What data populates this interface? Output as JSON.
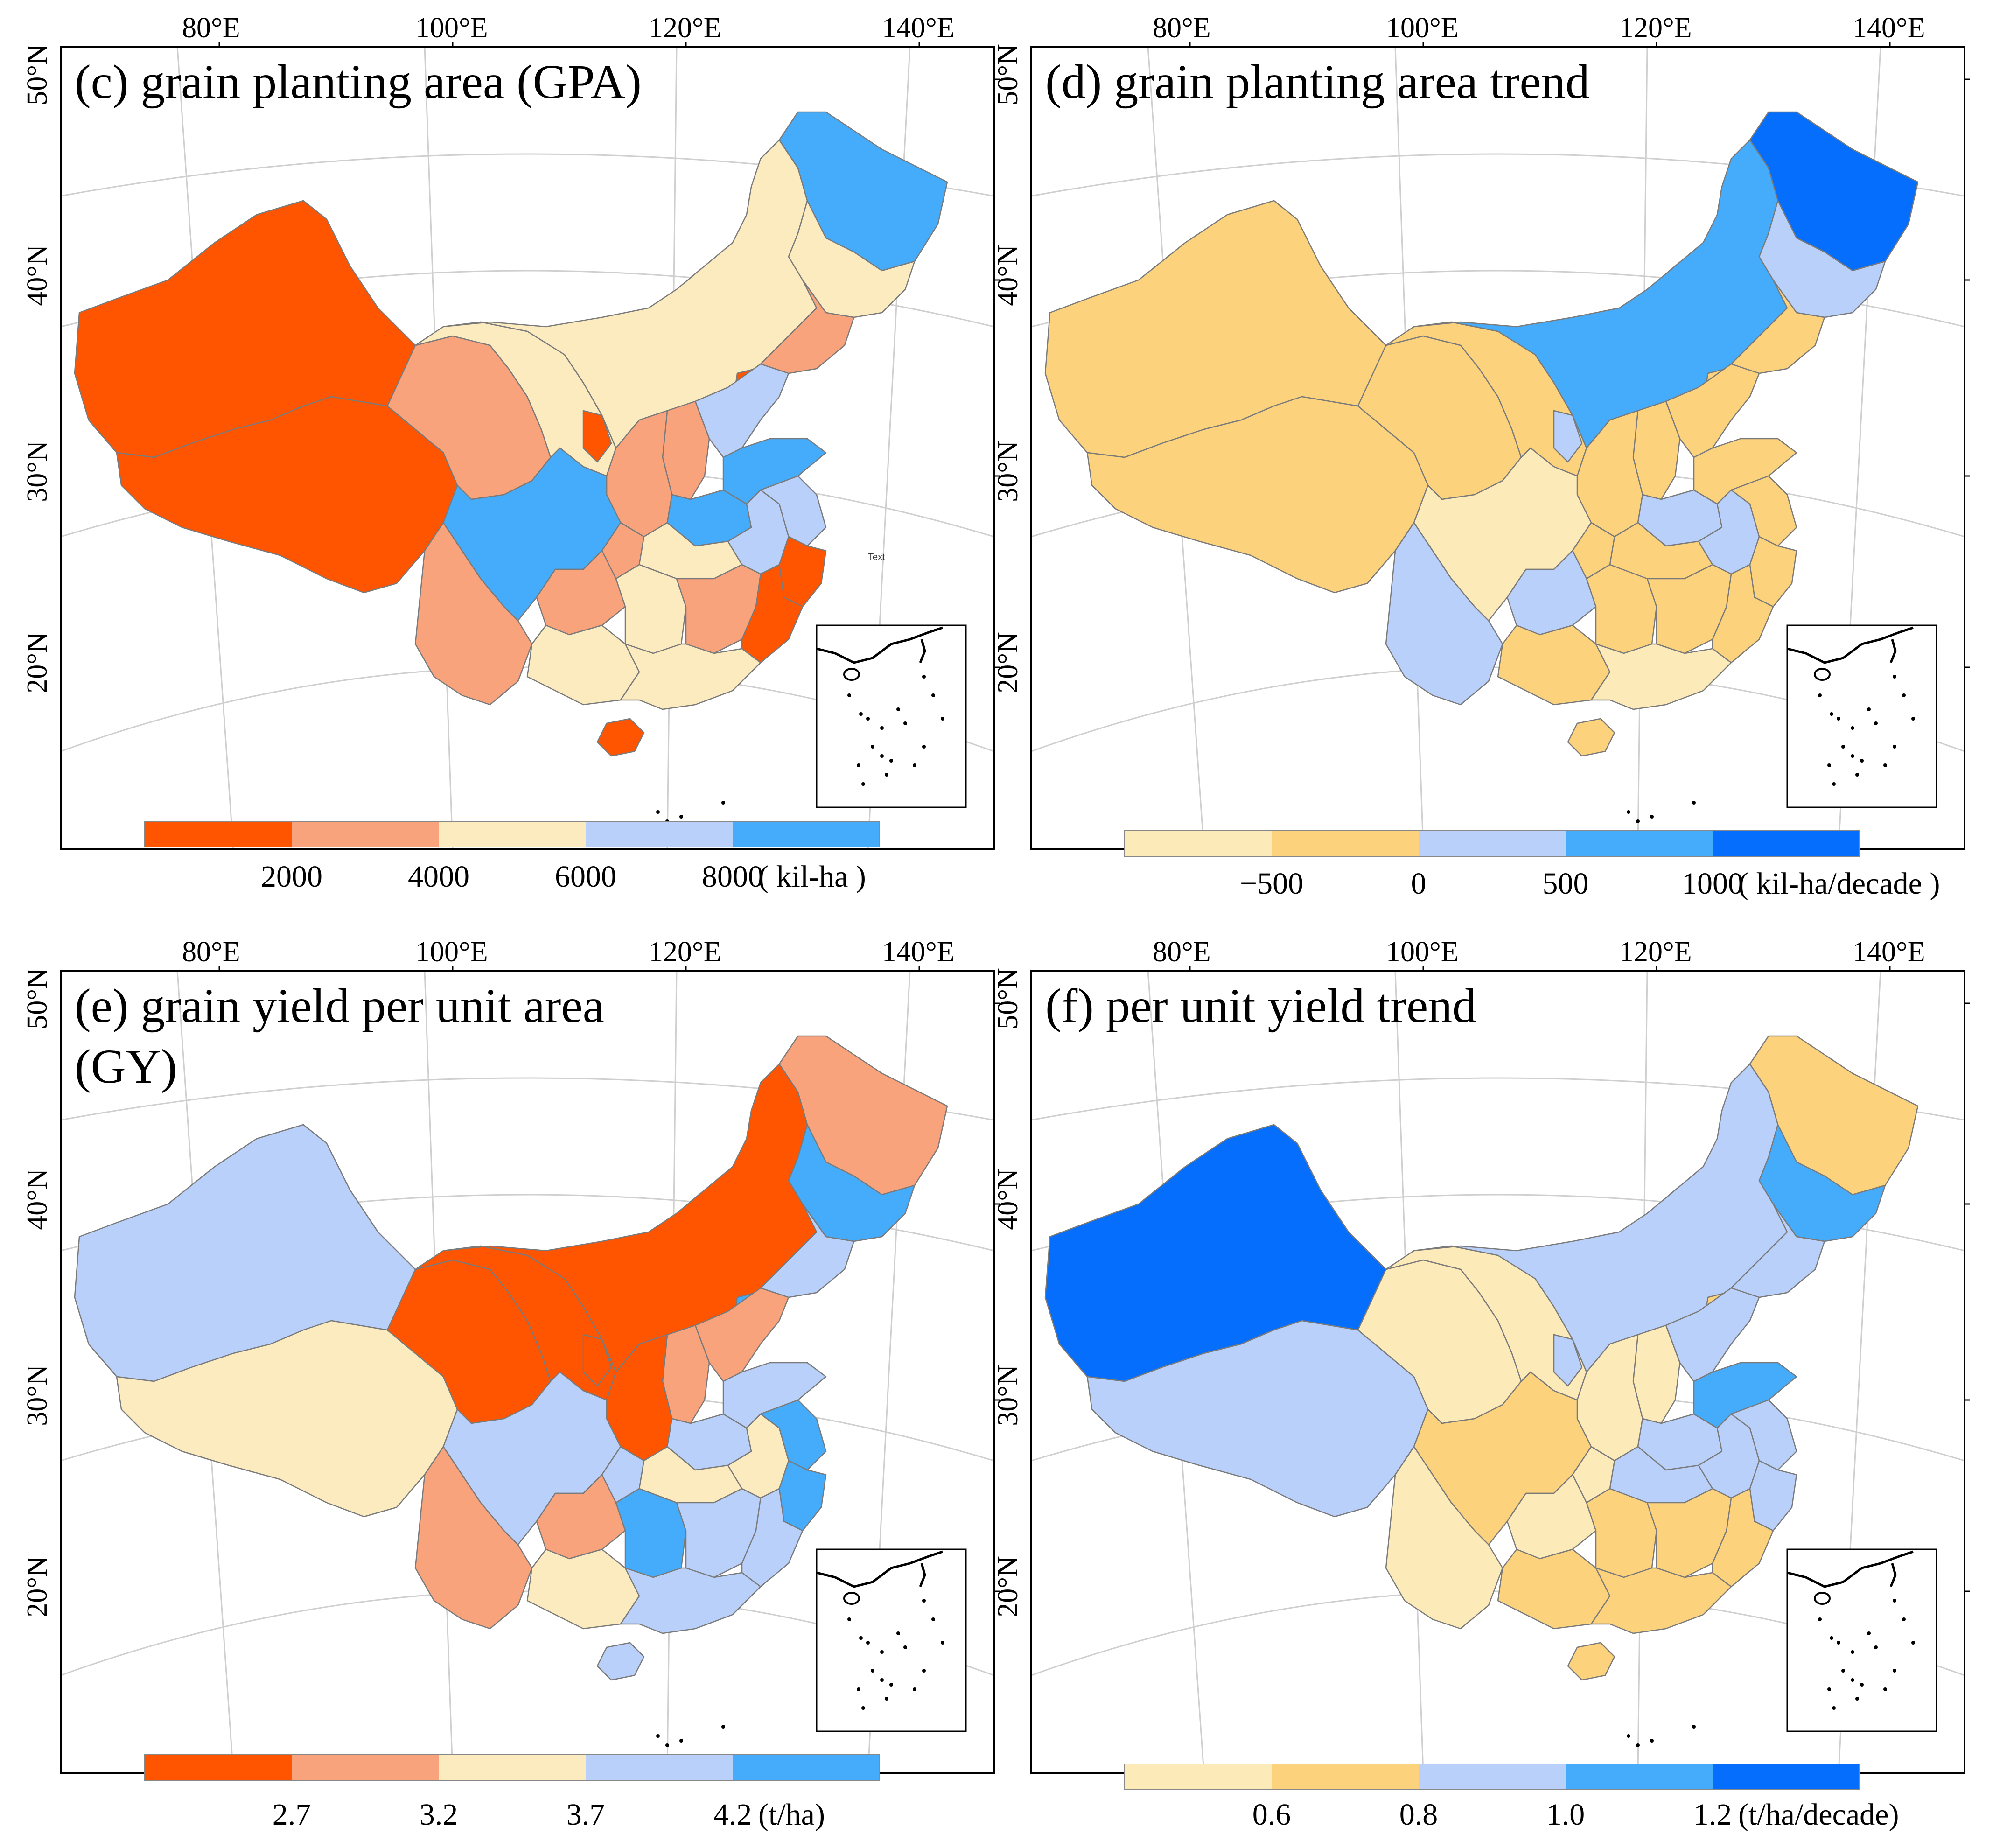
{
  "colors": {
    "red_dark": "#ff5500",
    "red_light": "#f9a37c",
    "cream": "#fdebc0",
    "blue_pale": "#b9d0fb",
    "blue_mid": "#45acfc",
    "orange_pale": "#fdeab9",
    "orange_mid": "#fcd27c",
    "blue_dark": "#056efd"
  },
  "axes": {
    "lon_labels": [
      "80°E",
      "100°E",
      "120°E",
      "140°E"
    ],
    "lat_labels": [
      "50°N",
      "40°N",
      "30°N",
      "20°N"
    ]
  },
  "panels": [
    {
      "id": "c",
      "title_lines": [
        "(c) grain planting area (GPA)"
      ],
      "colorbar": {
        "colors": [
          "#ff5500",
          "#f9a37c",
          "#fdebc0",
          "#b9d0fb",
          "#45acfc"
        ],
        "ticks": [
          "2000",
          "4000",
          "6000",
          "8000"
        ],
        "unit": "( kil-ha )"
      },
      "annotation": "Text"
    },
    {
      "id": "d",
      "title_lines": [
        "(d) grain planting area trend"
      ],
      "colorbar": {
        "colors": [
          "#fdeab9",
          "#fcd27c",
          "#b9d0fb",
          "#45acfc",
          "#056efd"
        ],
        "ticks": [
          "−500",
          "0",
          "500",
          "1000"
        ],
        "unit": "( kil-ha/decade )"
      }
    },
    {
      "id": "e",
      "title_lines": [
        "(e) grain yield per unit area",
        "(GY)"
      ],
      "colorbar": {
        "colors": [
          "#ff5500",
          "#f9a37c",
          "#fdebc0",
          "#b9d0fb",
          "#45acfc"
        ],
        "ticks": [
          "2.7",
          "3.2",
          "3.7",
          "4.2"
        ],
        "unit": "(t/ha)"
      }
    },
    {
      "id": "f",
      "title_lines": [
        "(f) per unit yield trend"
      ],
      "colorbar": {
        "colors": [
          "#fdeab9",
          "#fcd27c",
          "#b9d0fb",
          "#45acfc",
          "#056efd"
        ],
        "ticks": [
          "0.6",
          "0.8",
          "1.0",
          "1.2"
        ],
        "unit": "(t/ha/decade)"
      }
    }
  ],
  "region_classes": {
    "c": {
      "xinjiang": 0,
      "tibet": 0,
      "qinghai": 1,
      "gansu": 2,
      "innermongolia": 2,
      "heilongjiang": 4,
      "jilin": 2,
      "liaoning": 1,
      "ningxia": 0,
      "beijing": 0,
      "hebei": 3,
      "shanxi": 1,
      "shaanxi": 1,
      "henan": 4,
      "shandong": 4,
      "sichuan": 4,
      "chongqing": 1,
      "hubei": 2,
      "anhui": 3,
      "jiangsu": 3,
      "yunnan": 1,
      "guizhou": 1,
      "hunan": 2,
      "jiangxi": 1,
      "zhejiang": 0,
      "fujian": 0,
      "guangxi": 2,
      "guangdong": 2,
      "hainan": 0
    },
    "d": {
      "xinjiang": 1,
      "tibet": 1,
      "qinghai": 1,
      "gansu": 1,
      "innermongolia": 3,
      "heilongjiang": 4,
      "jilin": 2,
      "liaoning": 1,
      "ningxia": 2,
      "beijing": 1,
      "hebei": 1,
      "shanxi": 1,
      "shaanxi": 1,
      "henan": 2,
      "shandong": 1,
      "sichuan": 0,
      "chongqing": 1,
      "hubei": 1,
      "anhui": 2,
      "jiangsu": 1,
      "yunnan": 2,
      "guizhou": 2,
      "hunan": 1,
      "jiangxi": 1,
      "zhejiang": 1,
      "fujian": 1,
      "guangxi": 1,
      "guangdong": 0,
      "hainan": 1
    },
    "e": {
      "xinjiang": 3,
      "tibet": 2,
      "qinghai": 0,
      "gansu": 0,
      "innermongolia": 0,
      "heilongjiang": 1,
      "jilin": 4,
      "liaoning": 3,
      "ningxia": 0,
      "beijing": 4,
      "hebei": 1,
      "shanxi": 1,
      "shaanxi": 0,
      "henan": 3,
      "shandong": 3,
      "sichuan": 3,
      "chongqing": 3,
      "hubei": 2,
      "anhui": 2,
      "jiangsu": 4,
      "yunnan": 1,
      "guizhou": 1,
      "hunan": 4,
      "jiangxi": 3,
      "zhejiang": 4,
      "fujian": 3,
      "guangxi": 2,
      "guangdong": 3,
      "hainan": 3
    },
    "f": {
      "xinjiang": 4,
      "tibet": 2,
      "qinghai": 0,
      "gansu": 0,
      "innermongolia": 2,
      "heilongjiang": 1,
      "jilin": 3,
      "liaoning": 2,
      "ningxia": 2,
      "beijing": 1,
      "hebei": 2,
      "shanxi": 0,
      "shaanxi": 0,
      "henan": 2,
      "shandong": 3,
      "sichuan": 1,
      "chongqing": 0,
      "hubei": 2,
      "anhui": 2,
      "jiangsu": 2,
      "yunnan": 0,
      "guizhou": 0,
      "hunan": 1,
      "jiangxi": 1,
      "zhejiang": 2,
      "fujian": 1,
      "guangxi": 1,
      "guangdong": 1,
      "hainan": 1
    }
  }
}
